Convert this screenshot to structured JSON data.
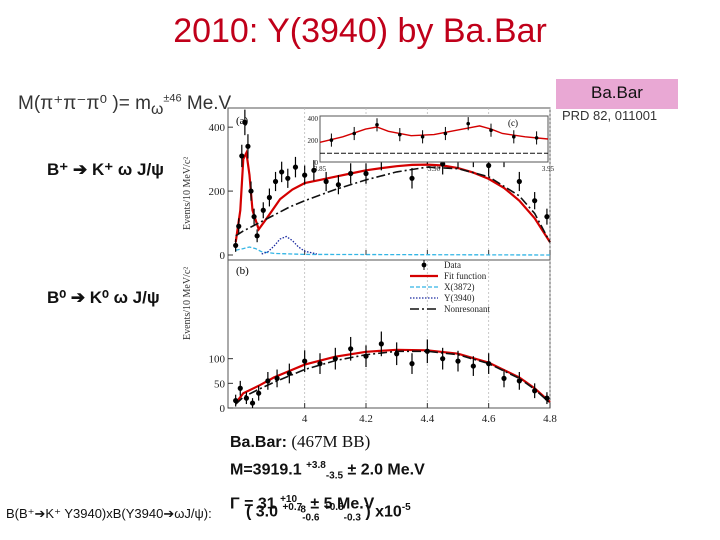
{
  "slide": {
    "title": "2010: Y(3940)  by Ba.Bar",
    "mass_constraint": {
      "prefix": "M(π⁺π⁻π⁰ )= m",
      "omega": "ω",
      "tol": "±46",
      "unit": " Me.V"
    },
    "experiment_box": "Ba.Bar",
    "reference": "PRD 82, 011001",
    "decay_a": "B⁺ ➔ K⁺ ω J/ψ",
    "decay_b": "B⁰ ➔ K⁰ ω J/ψ",
    "results": {
      "line1_label": "Ba.Bar: ",
      "line1_events": "(467M BB)",
      "mass_label": "M=3919.1 ",
      "mass_up": "+3.8",
      "mass_down": "-3.5",
      "mass_syst": " ± 2.0 Me.V",
      "width_label": "Γ = 31 ",
      "width_up": "+10",
      "width_down": "-8",
      "width_syst": " ± 5 Me.V",
      "bf_label": "B(B⁺➔K⁺ Y3940)xB(Y3940➔ωJ/ψ):",
      "bf_open": "( 3.0 ",
      "bf_stat_up": "+0.7",
      "bf_stat_down": "-0.6",
      "bf_syst_up": "+0.5",
      "bf_syst_down": "-0.3",
      "bf_close": " ) x10",
      "bf_exp": "-5"
    }
  },
  "chart_data": [
    {
      "type": "scatter",
      "panel": "(a)",
      "title": "",
      "xlabel": "",
      "ylabel": "Events/10 MeV/c²",
      "xlim": [
        3.75,
        4.8
      ],
      "ylim": [
        0,
        460
      ],
      "xticks": [
        4.0,
        4.2,
        4.4,
        4.6,
        4.8
      ],
      "yticks": [
        0,
        200,
        400
      ],
      "ytick_labels": [
        "0",
        "200",
        "400"
      ],
      "data": {
        "x": [
          3.775,
          3.785,
          3.795,
          3.805,
          3.815,
          3.825,
          3.835,
          3.845,
          3.865,
          3.885,
          3.905,
          3.925,
          3.945,
          3.97,
          4.0,
          4.03,
          4.07,
          4.11,
          4.15,
          4.2,
          4.25,
          4.3,
          4.35,
          4.4,
          4.45,
          4.5,
          4.55,
          4.6,
          4.65,
          4.7,
          4.75,
          4.79
        ],
        "y": [
          30,
          90,
          310,
          415,
          340,
          200,
          120,
          60,
          140,
          180,
          230,
          260,
          240,
          275,
          250,
          265,
          230,
          220,
          255,
          255,
          300,
          330,
          240,
          320,
          285,
          305,
          310,
          280,
          310,
          230,
          170,
          120
        ],
        "err": [
          20,
          25,
          35,
          40,
          38,
          30,
          25,
          20,
          25,
          28,
          30,
          32,
          30,
          32,
          30,
          32,
          30,
          30,
          32,
          32,
          35,
          35,
          32,
          35,
          33,
          34,
          35,
          33,
          35,
          30,
          27,
          25
        ]
      },
      "series": [
        {
          "name": "Fit function",
          "x": [
            3.775,
            3.79,
            3.8,
            3.81,
            3.82,
            3.83,
            3.85,
            3.88,
            3.92,
            3.96,
            4.0,
            4.05,
            4.1,
            4.15,
            4.2,
            4.25,
            4.3,
            4.35,
            4.4,
            4.45,
            4.5,
            4.55,
            4.6,
            4.65,
            4.7,
            4.75,
            4.8
          ],
          "y": [
            40,
            140,
            300,
            320,
            250,
            140,
            80,
            120,
            175,
            205,
            225,
            235,
            245,
            255,
            265,
            272,
            278,
            282,
            283,
            280,
            272,
            258,
            238,
            210,
            170,
            115,
            40
          ]
        },
        {
          "name": "Nonresonant",
          "x": [
            3.775,
            3.8,
            3.85,
            3.9,
            3.95,
            4.0,
            4.1,
            4.2,
            4.3,
            4.4,
            4.5,
            4.6,
            4.7,
            4.75,
            4.8
          ],
          "y": [
            60,
            75,
            100,
            125,
            150,
            170,
            205,
            235,
            260,
            275,
            270,
            245,
            185,
            130,
            40
          ]
        },
        {
          "name": "X(3872)",
          "x": [
            3.775,
            3.8,
            3.82,
            3.84,
            3.86,
            3.9,
            4.0,
            4.8
          ],
          "y": [
            15,
            20,
            25,
            20,
            10,
            5,
            2,
            0
          ]
        },
        {
          "name": "Y(3940)",
          "x": [
            3.86,
            3.88,
            3.9,
            3.92,
            3.94,
            3.96,
            3.98,
            4.0,
            4.04
          ],
          "y": [
            3,
            10,
            28,
            50,
            58,
            45,
            25,
            12,
            3
          ]
        }
      ],
      "inset": {
        "label": "(c)",
        "xlim": [
          3.85,
          3.95
        ],
        "xticks": [
          3.85,
          3.9,
          3.95
        ],
        "ylim": [
          0,
          420
        ],
        "yticks": [
          0,
          200,
          400
        ]
      }
    },
    {
      "type": "scatter",
      "panel": "(b)",
      "title": "",
      "xlabel": "",
      "ylabel": "Events/10 MeV/c²",
      "xlim": [
        3.75,
        4.8
      ],
      "ylim": [
        0,
        300
      ],
      "xticks": [
        4.0,
        4.2,
        4.4,
        4.6,
        4.8
      ],
      "xtick_labels": [
        "4",
        "4.2",
        "4.4",
        "4.6",
        "4.8"
      ],
      "yticks": [
        0,
        50,
        100
      ],
      "ytick_labels": [
        "0",
        "50",
        "100"
      ],
      "legend": [
        "Data",
        "Fit function",
        "X(3872)",
        "Y(3940)",
        "Nonresonant"
      ],
      "data": {
        "x": [
          3.775,
          3.79,
          3.81,
          3.83,
          3.85,
          3.88,
          3.91,
          3.95,
          4.0,
          4.05,
          4.1,
          4.15,
          4.2,
          4.25,
          4.3,
          4.35,
          4.4,
          4.45,
          4.5,
          4.55,
          4.6,
          4.65,
          4.7,
          4.75,
          4.79
        ],
        "y": [
          15,
          40,
          20,
          10,
          30,
          55,
          60,
          70,
          95,
          90,
          100,
          120,
          105,
          130,
          110,
          90,
          115,
          100,
          95,
          85,
          90,
          60,
          55,
          35,
          20
        ],
        "err": [
          12,
          15,
          12,
          10,
          15,
          18,
          18,
          20,
          22,
          21,
          22,
          24,
          22,
          25,
          23,
          21,
          24,
          22,
          21,
          20,
          21,
          18,
          18,
          15,
          12
        ]
      },
      "series": [
        {
          "name": "Fit function",
          "x": [
            3.775,
            3.8,
            3.85,
            3.9,
            3.95,
            4.0,
            4.1,
            4.2,
            4.3,
            4.4,
            4.5,
            4.6,
            4.7,
            4.75,
            4.8
          ],
          "y": [
            10,
            30,
            45,
            62,
            75,
            88,
            104,
            114,
            118,
            117,
            110,
            92,
            62,
            40,
            12
          ]
        },
        {
          "name": "Nonresonant",
          "x": [
            3.775,
            3.8,
            3.85,
            3.9,
            3.95,
            4.0,
            4.1,
            4.2,
            4.3,
            4.4,
            4.5,
            4.6,
            4.7,
            4.75,
            4.8
          ],
          "y": [
            8,
            22,
            38,
            52,
            65,
            78,
            96,
            108,
            115,
            115,
            108,
            90,
            60,
            38,
            10
          ]
        }
      ]
    }
  ]
}
